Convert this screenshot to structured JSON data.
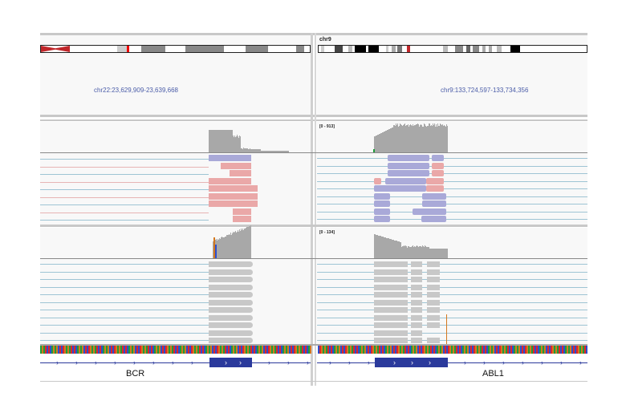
{
  "panels": [
    {
      "chromosome": "",
      "locus": "chr22:23,629,909-23,639,668",
      "coverage_range": "",
      "gene": "BCR",
      "read_colors": [
        "#a9a9d8",
        "#eaa8a8"
      ]
    },
    {
      "chromosome": "chr9",
      "locus": "chr9:133,724,597-133,734,356",
      "coverage_range": "[0 - 913]",
      "coverage_range_2": "[0 - 134]",
      "gene": "ABL1"
    }
  ],
  "colors": {
    "locus_text": "#4a5ca8",
    "coverage": "#a8a8a8",
    "read_forward": "#a9a9d8",
    "read_reverse": "#eaa8a8",
    "read_gray": "#c8c8c8",
    "gene_feature": "#2b3a9c",
    "centromere": "#c0262a",
    "sequence_A": "#1f9c3a",
    "sequence_C": "#2a4fcf",
    "sequence_G": "#d4781f",
    "sequence_T": "#e0262a"
  }
}
